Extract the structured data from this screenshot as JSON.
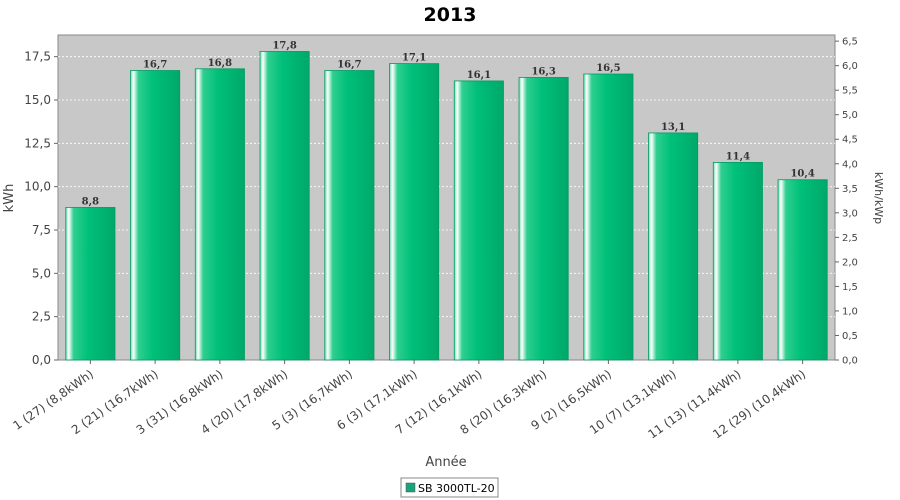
{
  "chart_data": {
    "type": "bar",
    "title": "2013",
    "xlabel": "Année",
    "ylabel": "kWh",
    "y2label": "kWh/kWp",
    "ylim": [
      0,
      18.75
    ],
    "y2lim": [
      0,
      6.625
    ],
    "yticks": [
      "0,0",
      "2,5",
      "5,0",
      "7,5",
      "10,0",
      "12,5",
      "15,0",
      "17,5"
    ],
    "y2ticks": [
      "0,0",
      "0,5",
      "1,0",
      "1,5",
      "2,0",
      "2,5",
      "3,0",
      "3,5",
      "4,0",
      "4,5",
      "5,0",
      "5,5",
      "6,0",
      "6,5"
    ],
    "categories": [
      "1 (27)  (8,8kWh)",
      "2 (21)  (16,7kWh)",
      "3 (31)  (16,8kWh)",
      "4 (20)  (17,8kWh)",
      "5 (3)  (16,7kWh)",
      "6 (3)  (17,1kWh)",
      "7 (12)  (16,1kWh)",
      "8 (20)  (16,3kWh)",
      "9 (2)  (16,5kWh)",
      "10 (7)  (13,1kWh)",
      "11 (13)  (11,4kWh)",
      "12 (29)  (10,4kWh)"
    ],
    "series": [
      {
        "name": "SB 3000TL-20",
        "values": [
          8.8,
          16.7,
          16.8,
          17.8,
          16.7,
          17.1,
          16.1,
          16.3,
          16.5,
          13.1,
          11.4,
          10.4
        ],
        "labels": [
          "8,8",
          "16,7",
          "16,8",
          "17,8",
          "16,7",
          "17,1",
          "16,1",
          "16,3",
          "16,5",
          "13,1",
          "11,4",
          "10,4"
        ]
      }
    ],
    "grid": true,
    "legend_position": "bottom",
    "colors": {
      "bar": "#00c07a",
      "bar_dark": "#009b62",
      "plot_bg": "#c8c8c8",
      "grid": "#ffffff",
      "legend_swatch": "#19a37a"
    }
  }
}
